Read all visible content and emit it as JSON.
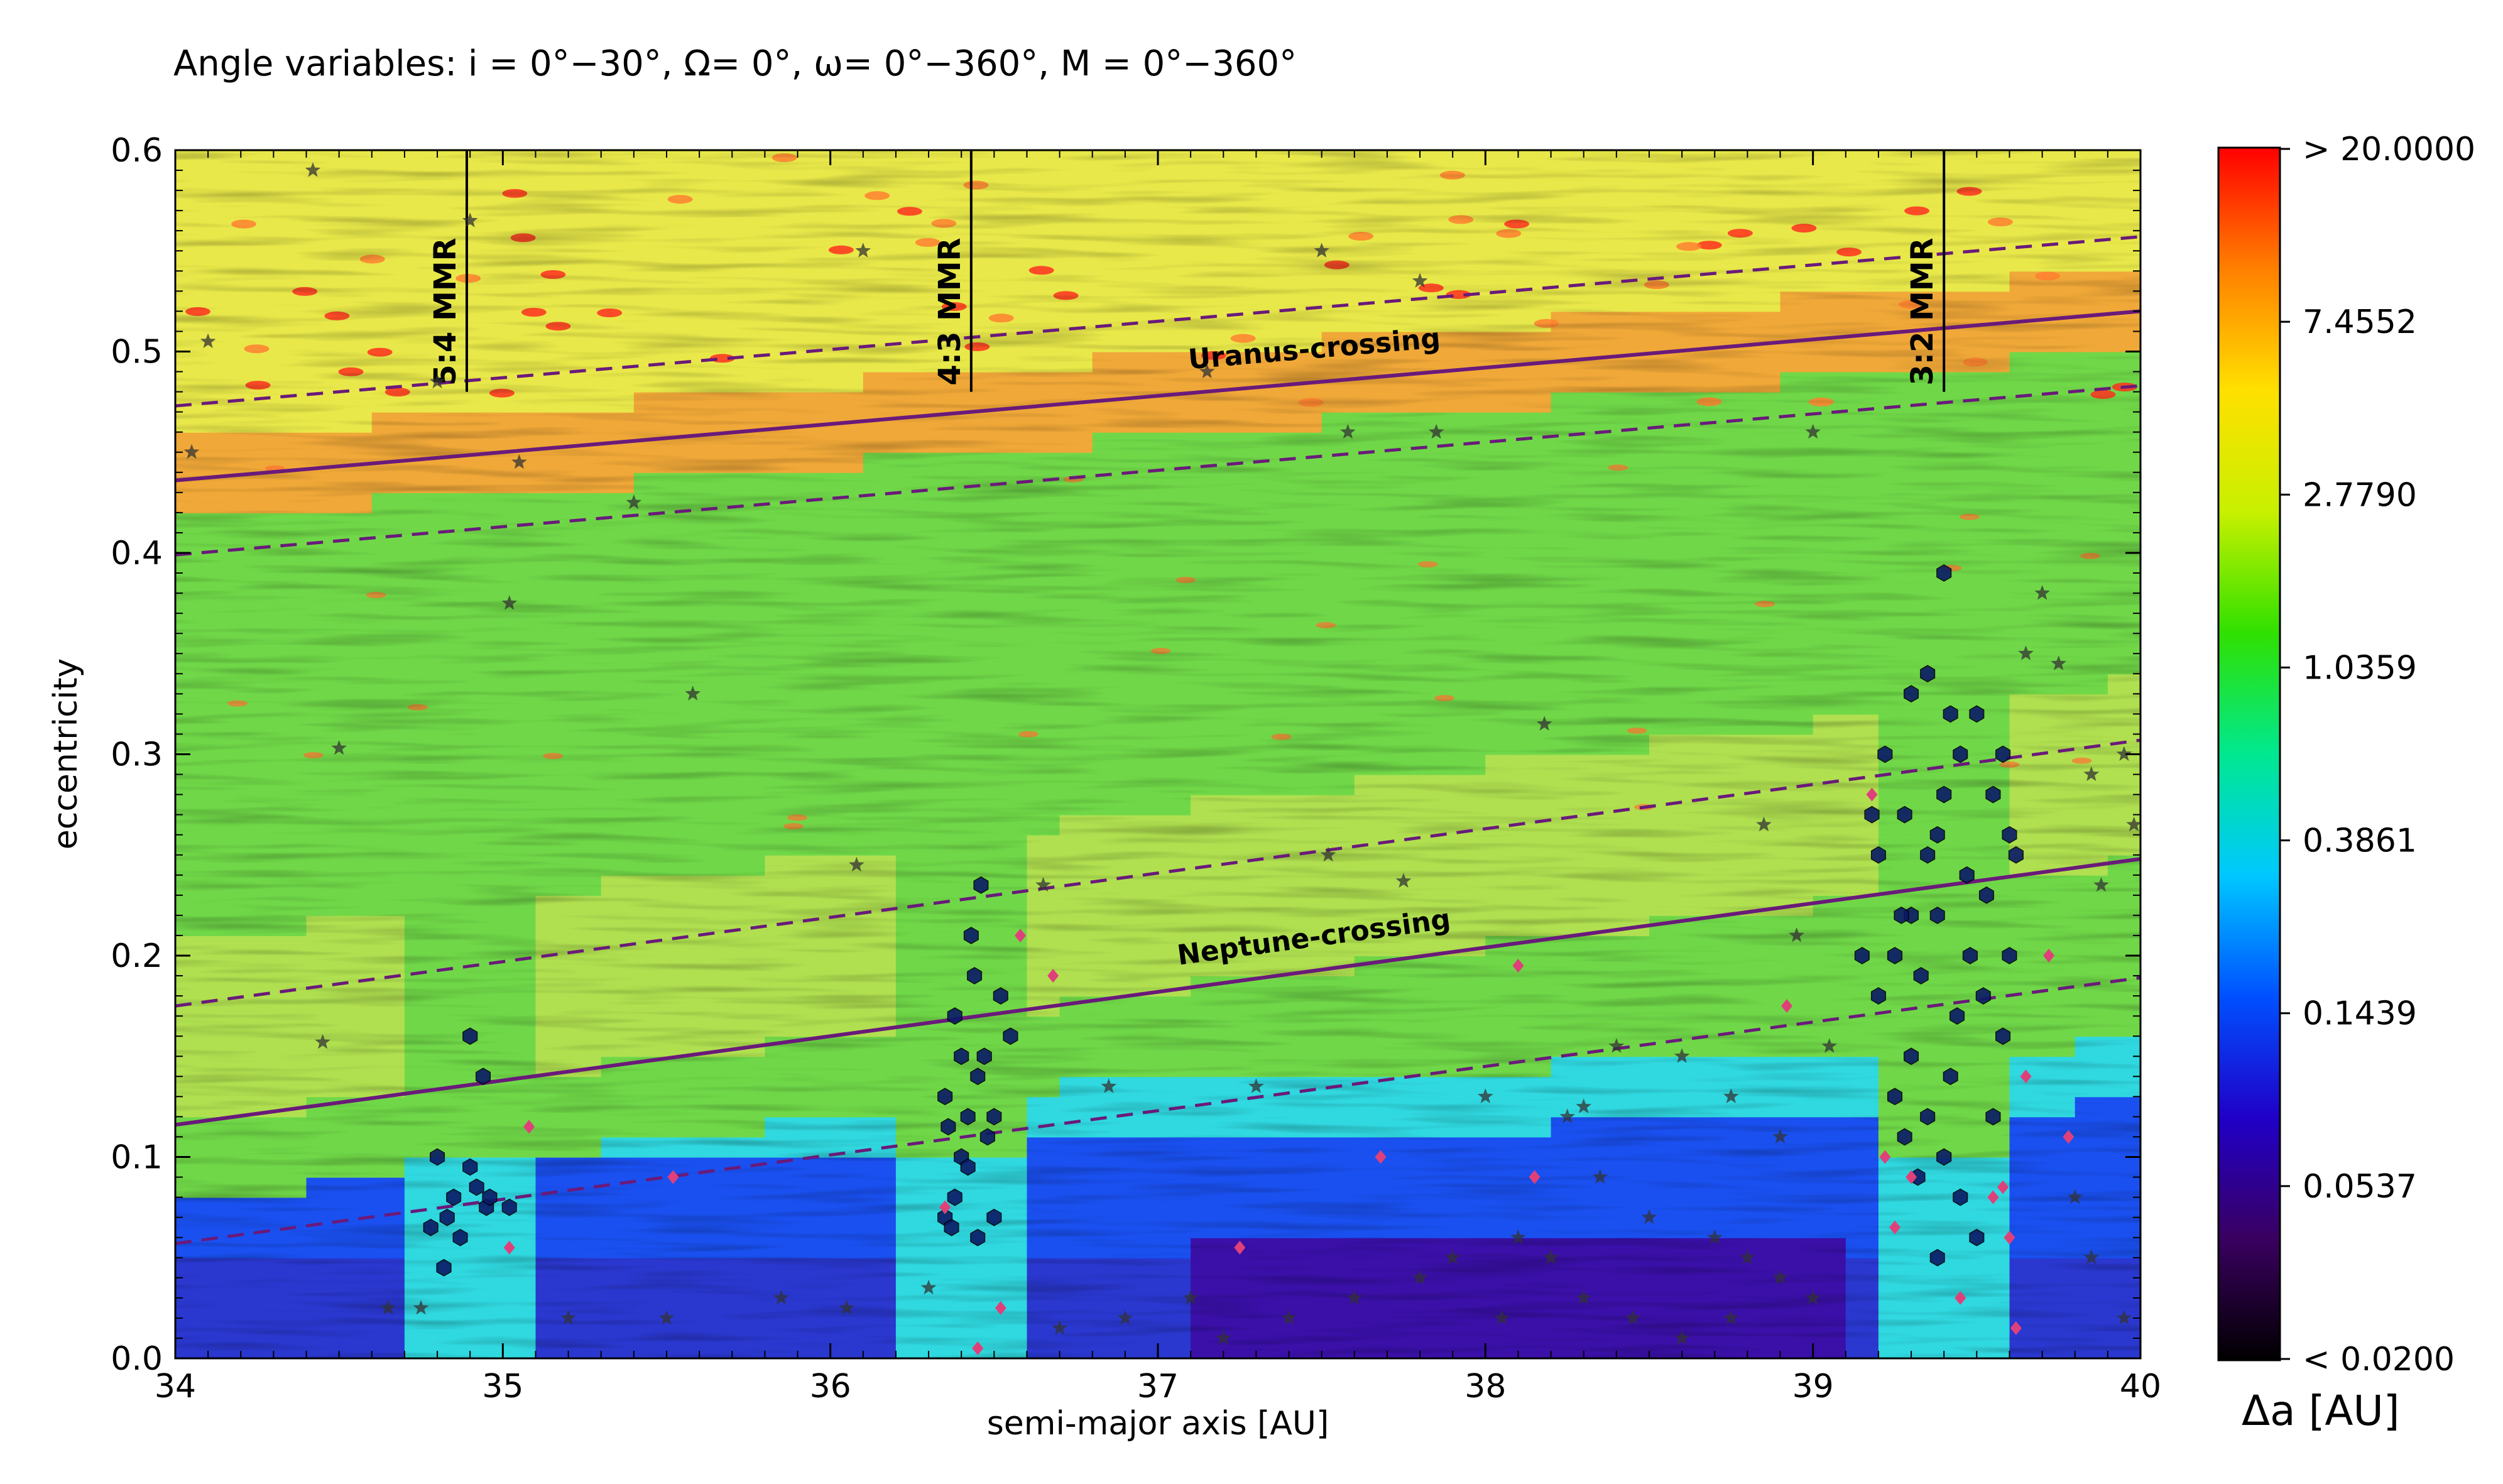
{
  "chart_data": {
    "type": "heatmap",
    "title": "Angle variables: i = 0°−30°, Ω= 0°, ω= 0°−360°, M = 0°−360°",
    "xlabel": "semi-major axis [AU]",
    "ylabel": "eccentricity",
    "xlim": [
      34,
      40
    ],
    "ylim": [
      0.0,
      0.6
    ],
    "x_ticks": [
      "34",
      "35",
      "36",
      "37",
      "38",
      "39",
      "40"
    ],
    "y_ticks": [
      "0.0",
      "0.1",
      "0.2",
      "0.3",
      "0.4",
      "0.5",
      "0.6"
    ],
    "colorbar": {
      "label": "Δa [AU]",
      "scale": "log",
      "tick_labels": [
        "> 20.0000",
        "7.4552",
        "2.7790",
        "1.0359",
        "0.3861",
        "0.1439",
        "0.0537",
        "<  0.0200"
      ],
      "colors": [
        "#000000",
        "#3a0060",
        "#2000c8",
        "#0050ff",
        "#00c8ff",
        "#00e890",
        "#30e000",
        "#c8f000",
        "#ffe000",
        "#ff8000",
        "#ff0000"
      ]
    },
    "resonances": [
      {
        "label": "5:4 MMR",
        "a": 34.89
      },
      {
        "label": "4:3 MMR",
        "a": 36.43
      },
      {
        "label": "3:2 MMR",
        "a": 39.4
      }
    ],
    "crossing_curves": [
      {
        "label": "Uranus-crossing",
        "x": [
          34,
          40
        ],
        "y": [
          0.436,
          0.52
        ],
        "band": 0.037
      },
      {
        "label": "Neptune-crossing",
        "x": [
          34,
          40
        ],
        "y": [
          0.116,
          0.248
        ],
        "band": 0.059
      }
    ],
    "series": [
      {
        "marker": "hexagon",
        "color": "#0a1a66",
        "points": [
          [
            34.8,
            0.1
          ],
          [
            34.85,
            0.08
          ],
          [
            34.9,
            0.095
          ],
          [
            34.92,
            0.085
          ],
          [
            34.95,
            0.075
          ],
          [
            34.83,
            0.07
          ],
          [
            34.87,
            0.06
          ],
          [
            34.9,
            0.16
          ],
          [
            34.94,
            0.14
          ],
          [
            35.02,
            0.075
          ],
          [
            34.82,
            0.045
          ],
          [
            34.78,
            0.065
          ],
          [
            34.96,
            0.08
          ],
          [
            36.35,
            0.07
          ],
          [
            36.38,
            0.08
          ],
          [
            36.4,
            0.1
          ],
          [
            36.42,
            0.12
          ],
          [
            36.45,
            0.14
          ],
          [
            36.4,
            0.15
          ],
          [
            36.38,
            0.17
          ],
          [
            36.44,
            0.19
          ],
          [
            36.43,
            0.21
          ],
          [
            36.46,
            0.235
          ],
          [
            36.35,
            0.13
          ],
          [
            36.42,
            0.095
          ],
          [
            36.48,
            0.11
          ],
          [
            36.5,
            0.12
          ],
          [
            36.37,
            0.065
          ],
          [
            36.45,
            0.06
          ],
          [
            36.5,
            0.07
          ],
          [
            36.55,
            0.16
          ],
          [
            36.52,
            0.18
          ],
          [
            36.36,
            0.115
          ],
          [
            36.47,
            0.15
          ],
          [
            39.2,
            0.18
          ],
          [
            39.25,
            0.2
          ],
          [
            39.3,
            0.22
          ],
          [
            39.35,
            0.25
          ],
          [
            39.4,
            0.28
          ],
          [
            39.45,
            0.3
          ],
          [
            39.5,
            0.32
          ],
          [
            39.3,
            0.33
          ],
          [
            39.35,
            0.34
          ],
          [
            39.42,
            0.32
          ],
          [
            39.55,
            0.28
          ],
          [
            39.6,
            0.26
          ],
          [
            39.2,
            0.25
          ],
          [
            39.22,
            0.3
          ],
          [
            39.28,
            0.27
          ],
          [
            39.38,
            0.22
          ],
          [
            39.48,
            0.2
          ],
          [
            39.52,
            0.18
          ],
          [
            39.58,
            0.16
          ],
          [
            39.3,
            0.15
          ],
          [
            39.35,
            0.12
          ],
          [
            39.4,
            0.1
          ],
          [
            39.45,
            0.08
          ],
          [
            39.5,
            0.06
          ],
          [
            39.32,
            0.09
          ],
          [
            39.42,
            0.14
          ],
          [
            39.25,
            0.13
          ],
          [
            39.55,
            0.12
          ],
          [
            39.6,
            0.2
          ],
          [
            39.38,
            0.26
          ],
          [
            39.47,
            0.24
          ],
          [
            39.33,
            0.19
          ],
          [
            39.44,
            0.17
          ],
          [
            39.27,
            0.22
          ],
          [
            39.53,
            0.23
          ],
          [
            39.4,
            0.39
          ],
          [
            39.38,
            0.05
          ],
          [
            39.28,
            0.11
          ],
          [
            39.58,
            0.3
          ],
          [
            39.15,
            0.2
          ],
          [
            39.18,
            0.27
          ],
          [
            39.62,
            0.25
          ]
        ]
      },
      {
        "marker": "star",
        "color": "#333333",
        "points": [
          [
            34.05,
            0.45
          ],
          [
            34.1,
            0.505
          ],
          [
            34.42,
            0.59
          ],
          [
            34.9,
            0.565
          ],
          [
            34.8,
            0.485
          ],
          [
            35.05,
            0.445
          ],
          [
            35.4,
            0.425
          ],
          [
            35.02,
            0.375
          ],
          [
            35.58,
            0.33
          ],
          [
            34.5,
            0.303
          ],
          [
            34.45,
            0.157
          ],
          [
            36.1,
            0.55
          ],
          [
            36.08,
            0.245
          ],
          [
            36.65,
            0.235
          ],
          [
            37.5,
            0.55
          ],
          [
            37.8,
            0.535
          ],
          [
            37.58,
            0.46
          ],
          [
            37.85,
            0.46
          ],
          [
            37.15,
            0.49
          ],
          [
            38.18,
            0.315
          ],
          [
            37.52,
            0.25
          ],
          [
            37.75,
            0.237
          ],
          [
            39.0,
            0.46
          ],
          [
            38.85,
            0.265
          ],
          [
            38.95,
            0.21
          ],
          [
            39.85,
            0.29
          ],
          [
            39.95,
            0.3
          ],
          [
            39.98,
            0.265
          ],
          [
            39.88,
            0.235
          ],
          [
            39.75,
            0.345
          ],
          [
            39.7,
            0.38
          ],
          [
            39.65,
            0.35
          ],
          [
            38.0,
            0.13
          ],
          [
            38.25,
            0.12
          ],
          [
            38.3,
            0.125
          ],
          [
            38.4,
            0.155
          ],
          [
            38.6,
            0.15
          ],
          [
            38.75,
            0.13
          ],
          [
            38.9,
            0.11
          ],
          [
            39.05,
            0.155
          ],
          [
            38.1,
            0.06
          ],
          [
            38.2,
            0.05
          ],
          [
            38.35,
            0.09
          ],
          [
            38.5,
            0.07
          ],
          [
            38.7,
            0.06
          ],
          [
            38.8,
            0.05
          ],
          [
            38.9,
            0.04
          ],
          [
            39.0,
            0.03
          ],
          [
            38.3,
            0.03
          ],
          [
            38.45,
            0.02
          ],
          [
            38.6,
            0.01
          ],
          [
            38.75,
            0.02
          ],
          [
            37.2,
            0.01
          ],
          [
            37.4,
            0.02
          ],
          [
            37.6,
            0.03
          ],
          [
            37.8,
            0.04
          ],
          [
            37.9,
            0.05
          ],
          [
            38.05,
            0.02
          ],
          [
            36.7,
            0.015
          ],
          [
            36.9,
            0.02
          ],
          [
            37.1,
            0.03
          ],
          [
            35.2,
            0.02
          ],
          [
            35.5,
            0.02
          ],
          [
            35.85,
            0.03
          ],
          [
            36.05,
            0.025
          ],
          [
            36.3,
            0.035
          ],
          [
            34.65,
            0.025
          ],
          [
            34.75,
            0.025
          ],
          [
            39.95,
            0.02
          ],
          [
            39.85,
            0.05
          ],
          [
            39.8,
            0.08
          ],
          [
            37.3,
            0.135
          ],
          [
            36.85,
            0.135
          ]
        ]
      },
      {
        "marker": "diamond",
        "color": "#e0407a",
        "points": [
          [
            35.08,
            0.115
          ],
          [
            35.52,
            0.09
          ],
          [
            35.02,
            0.055
          ],
          [
            36.35,
            0.075
          ],
          [
            36.58,
            0.21
          ],
          [
            36.68,
            0.19
          ],
          [
            36.52,
            0.025
          ],
          [
            36.45,
            0.005
          ],
          [
            37.25,
            0.055
          ],
          [
            37.68,
            0.1
          ],
          [
            38.1,
            0.195
          ],
          [
            38.15,
            0.09
          ],
          [
            38.92,
            0.175
          ],
          [
            39.18,
            0.28
          ],
          [
            39.22,
            0.1
          ],
          [
            39.25,
            0.065
          ],
          [
            39.3,
            0.09
          ],
          [
            39.45,
            0.03
          ],
          [
            39.55,
            0.08
          ],
          [
            39.6,
            0.06
          ],
          [
            39.65,
            0.14
          ],
          [
            39.72,
            0.2
          ],
          [
            39.78,
            0.11
          ],
          [
            39.62,
            0.015
          ],
          [
            39.58,
            0.085
          ]
        ]
      }
    ]
  }
}
